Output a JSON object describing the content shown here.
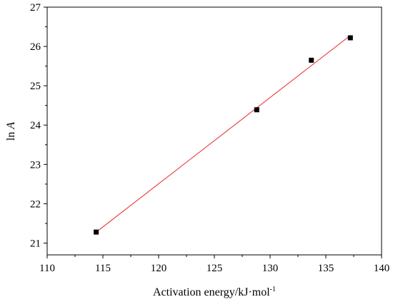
{
  "chart_data": {
    "type": "scatter",
    "xlabel": "Activation energy/kJ·mol",
    "xlabel_superscript": "-1",
    "ylabel": "ln",
    "ylabel_italic": "A",
    "xlim": [
      110,
      140
    ],
    "ylim": [
      20.7,
      27
    ],
    "x_ticks": [
      110,
      115,
      120,
      125,
      130,
      135,
      140
    ],
    "y_ticks": [
      21,
      22,
      23,
      24,
      25,
      26,
      27
    ],
    "grid": false,
    "legend": "none",
    "points": [
      {
        "x": 114.4,
        "y": 21.28
      },
      {
        "x": 128.8,
        "y": 24.39
      },
      {
        "x": 133.7,
        "y": 25.65
      },
      {
        "x": 137.2,
        "y": 26.22
      }
    ],
    "fit_line": {
      "x_start": 114.4,
      "y_start": 21.28,
      "x_end": 137.2,
      "y_end": 26.28
    },
    "colors": {
      "points": "#000000",
      "fit_line": "#e8262c",
      "axis": "#000000"
    }
  }
}
